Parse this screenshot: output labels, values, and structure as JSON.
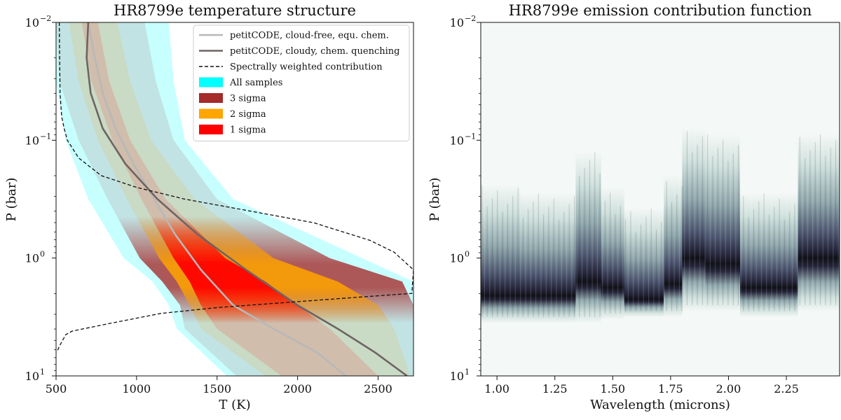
{
  "chart_data": [
    {
      "type": "line",
      "title": "HR8799e temperature structure",
      "xlabel": "T (K)",
      "ylabel": "P (bar)",
      "xlim": [
        500,
        2720
      ],
      "ylim_log10": [
        1,
        -2
      ],
      "y_scale": "log",
      "x_ticks": [
        500,
        1000,
        1500,
        2000,
        2500
      ],
      "x_tick_labels": [
        "500",
        "1000",
        "1500",
        "2000",
        "2500"
      ],
      "y_ticks_log10": [
        -2,
        -1,
        0,
        1
      ],
      "y_tick_bases": [
        "10",
        "10",
        "10",
        "10"
      ],
      "y_tick_exponents": [
        "−2",
        "−1",
        "0",
        "1"
      ],
      "legend_position": "top-right",
      "legend": [
        {
          "label": "petitCODE, cloud-free, equ. chem.",
          "kind": "line",
          "color": "#b8b8b8",
          "dash": false
        },
        {
          "label": "petitCODE, cloudy, chem. quenching",
          "kind": "line",
          "color": "#6e6464",
          "dash": false
        },
        {
          "label": "Spectrally weighted contribution",
          "kind": "line",
          "color": "#111111",
          "dash": true
        },
        {
          "label": "All samples",
          "kind": "patch",
          "color": "#00ffff"
        },
        {
          "label": "3 sigma",
          "kind": "patch",
          "color": "#a52a2a"
        },
        {
          "label": "2 sigma",
          "kind": "patch",
          "color": "#ffa500"
        },
        {
          "label": "1 sigma",
          "kind": "patch",
          "color": "#ff0000"
        }
      ],
      "envelopes": {
        "logP": [
          -2,
          -1.5,
          -1,
          -0.5,
          0,
          0.2,
          0.4,
          0.6,
          1
        ],
        "all_samples": {
          "color": "#00ffff",
          "low": [
            500,
            500,
            560,
            700,
            920,
            1100,
            1200,
            1250,
            1560
          ],
          "high": [
            1200,
            1230,
            1300,
            1600,
            2400,
            2720,
            2720,
            2720,
            2720
          ]
        },
        "three_sigma": {
          "color": "#a52a2a",
          "low": [
            500,
            520,
            640,
            820,
            1020,
            1160,
            1270,
            1300,
            1620
          ],
          "high": [
            1050,
            1120,
            1230,
            1500,
            2200,
            2650,
            2720,
            2720,
            2720
          ]
        },
        "two_sigma": {
          "color": "#ffa500",
          "low": [
            580,
            640,
            760,
            940,
            1140,
            1250,
            1330,
            1400,
            1800
          ],
          "high": [
            880,
            960,
            1090,
            1360,
            1850,
            2250,
            2500,
            2600,
            2700
          ]
        },
        "one_sigma": {
          "color": "#ff0000",
          "low": [
            660,
            720,
            850,
            1030,
            1230,
            1330,
            1400,
            1500,
            1900
          ],
          "high": [
            760,
            830,
            960,
            1180,
            1550,
            1800,
            2000,
            2200,
            2500
          ]
        }
      },
      "series": [
        {
          "name": "petitCODE, cloud-free, equ. chem.",
          "color": "#b8b8b8",
          "x": [
            700,
            740,
            790,
            870,
            980,
            1110,
            1240,
            1400,
            1600,
            1850,
            2120,
            2300
          ],
          "logP": [
            -2,
            -1.7,
            -1.4,
            -1.1,
            -0.8,
            -0.5,
            -0.2,
            0.1,
            0.4,
            0.6,
            0.8,
            1
          ]
        },
        {
          "name": "petitCODE, cloudy, chem. quenching",
          "color": "#6e6464",
          "x": [
            700,
            690,
            715,
            790,
            930,
            1130,
            1380,
            1680,
            2000,
            2250,
            2480,
            2680
          ],
          "logP": [
            -2,
            -1.7,
            -1.4,
            -1.1,
            -0.8,
            -0.5,
            -0.2,
            0.1,
            0.4,
            0.6,
            0.8,
            1
          ]
        },
        {
          "name": "Spectrally weighted contribution",
          "color": "#111111",
          "dash": true,
          "x": [
            520,
            522,
            525,
            535,
            550,
            570,
            640,
            780,
            1000,
            1300,
            1700,
            2100,
            2450,
            2600,
            2720,
            2710,
            2600,
            2300,
            1900,
            1500,
            1150,
            850,
            600,
            560,
            520,
            505
          ],
          "logP": [
            -2,
            -1.7,
            -1.4,
            -1.2,
            -1.1,
            -1.0,
            -0.85,
            -0.7,
            -0.6,
            -0.5,
            -0.4,
            -0.3,
            -0.15,
            -0.05,
            0.1,
            0.3,
            0.31,
            0.34,
            0.38,
            0.42,
            0.47,
            0.55,
            0.62,
            0.65,
            0.75,
            0.8
          ]
        }
      ]
    },
    {
      "type": "heatmap",
      "title": "HR8799e emission contribution function",
      "xlabel": "Wavelength (microns)",
      "ylabel": "P (bar)",
      "xlim": [
        0.93,
        2.48
      ],
      "ylim_log10": [
        1,
        -2
      ],
      "y_scale": "log",
      "x_ticks": [
        1.0,
        1.25,
        1.5,
        1.75,
        2.0,
        2.25
      ],
      "x_tick_labels": [
        "1.00",
        "1.25",
        "1.50",
        "1.75",
        "2.00",
        "2.25"
      ],
      "y_ticks_log10": [
        -2,
        -1,
        0,
        1
      ],
      "y_tick_bases": [
        "10",
        "10",
        "10",
        "10"
      ],
      "y_tick_exponents": [
        "−2",
        "−1",
        "0",
        "1"
      ],
      "colormap": [
        "#f4f8f6",
        "#cfe0dc",
        "#8fa7ac",
        "#4d5670",
        "#25253a",
        "#111118"
      ],
      "columns": [
        {
          "w": [
            0.93,
            1.1
          ],
          "peak_logP": 0.32,
          "top_logP": -0.62,
          "bottom_logP": 0.55
        },
        {
          "w": [
            1.1,
            1.34
          ],
          "peak_logP": 0.32,
          "top_logP": -0.55,
          "bottom_logP": 0.55
        },
        {
          "w": [
            1.34,
            1.45
          ],
          "peak_logP": 0.2,
          "top_logP": -0.9,
          "bottom_logP": 0.55
        },
        {
          "w": [
            1.45,
            1.55
          ],
          "peak_logP": 0.25,
          "top_logP": -0.6,
          "bottom_logP": 0.52
        },
        {
          "w": [
            1.55,
            1.72
          ],
          "peak_logP": 0.35,
          "top_logP": -0.42,
          "bottom_logP": 0.5
        },
        {
          "w": [
            1.72,
            1.8
          ],
          "peak_logP": 0.22,
          "top_logP": -0.7,
          "bottom_logP": 0.5
        },
        {
          "w": [
            1.8,
            1.9
          ],
          "peak_logP": 0.0,
          "top_logP": -1.1,
          "bottom_logP": 0.45
        },
        {
          "w": [
            1.9,
            2.05
          ],
          "peak_logP": 0.05,
          "top_logP": -1.05,
          "bottom_logP": 0.45
        },
        {
          "w": [
            2.05,
            2.3
          ],
          "peak_logP": 0.25,
          "top_logP": -0.55,
          "bottom_logP": 0.5
        },
        {
          "w": [
            2.3,
            2.48
          ],
          "peak_logP": 0.0,
          "top_logP": -1.05,
          "bottom_logP": 0.45
        }
      ]
    }
  ]
}
